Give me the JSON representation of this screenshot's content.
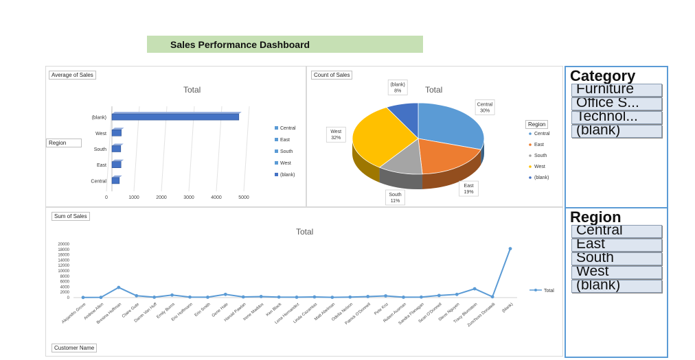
{
  "dashboard": {
    "title": "Sales Performance Dashboard"
  },
  "bar_panel": {
    "field_label": "Average of Sales",
    "axis_field": "Region"
  },
  "pie_panel": {
    "field_label": "Count of Sales",
    "legend_title": "Region"
  },
  "line_panel": {
    "field_label": "Sum of Sales",
    "axis_field": "Customer Name"
  },
  "slicers": {
    "category": {
      "title": "Category",
      "items": [
        "Furniture",
        "Office S...",
        "Technol...",
        "(blank)"
      ]
    },
    "region": {
      "title": "Region",
      "items": [
        "Central",
        "East",
        "South",
        "West",
        "(blank)"
      ]
    }
  },
  "colors": {
    "title_bar": "#c6e0b4",
    "slicer_border": "#5b9bd5",
    "bar": "#4472c4",
    "central": "#5b9bd5",
    "east": "#ed7d31",
    "south": "#a5a5a5",
    "west": "#ffc000",
    "blank": "#4472c4",
    "line": "#5b9bd5"
  },
  "chart_data": [
    {
      "type": "bar",
      "orientation": "horizontal",
      "title": "Total",
      "categories": [
        "Central",
        "East",
        "South",
        "West",
        "(blank)"
      ],
      "values": [
        270,
        330,
        320,
        340,
        4620
      ],
      "xlim": [
        0,
        5000
      ],
      "xticks": [
        "0",
        "1000",
        "2000",
        "3000",
        "4000",
        "5000"
      ],
      "legend": [
        "Central",
        "East",
        "South",
        "West",
        "(blank)"
      ],
      "legend_position": "right"
    },
    {
      "type": "pie",
      "title": "Total",
      "series": [
        {
          "name": "Central",
          "label": "Central",
          "pct_label": "30%",
          "value": 30
        },
        {
          "name": "East",
          "label": "East",
          "pct_label": "19%",
          "value": 19
        },
        {
          "name": "South",
          "label": "South",
          "pct_label": "11%",
          "value": 11
        },
        {
          "name": "West",
          "label": "West",
          "pct_label": "32%",
          "value": 32
        },
        {
          "name": "(blank)",
          "label": "(blank)",
          "pct_label": "8%",
          "value": 8
        }
      ],
      "legend_position": "right"
    },
    {
      "type": "line",
      "title": "Total",
      "x": [
        "Alejandro Grove",
        "Andrew Allen",
        "Brosina Hoffman",
        "Claire Gute",
        "Darrin Van Huff",
        "Emily Burns",
        "Eric Hoffmann",
        "Erin Smith",
        "Gene Hale",
        "Harold Pawlan",
        "Irene Maddox",
        "Ken Black",
        "Lena Hernandez",
        "Linda Cazamias",
        "Matt Abelman",
        "Odella Nelson",
        "Patrick O'Donnell",
        "Pete Kriz",
        "Ruben Ausman",
        "Sandra Flanagan",
        "Sean O'Donnell",
        "Steve Nguyen",
        "Tracy Blumstein",
        "Zuschuss Donatelli",
        "(blank)"
      ],
      "series": [
        {
          "name": "Total",
          "values": [
            50,
            80,
            3800,
            700,
            150,
            950,
            200,
            150,
            1200,
            250,
            400,
            200,
            150,
            250,
            100,
            200,
            400,
            650,
            150,
            200,
            800,
            1200,
            3300,
            300,
            18300
          ]
        }
      ],
      "ylim": [
        0,
        20000
      ],
      "yticks": [
        "0",
        "2000",
        "4000",
        "6000",
        "8000",
        "10000",
        "12000",
        "14000",
        "16000",
        "18000",
        "20000"
      ],
      "legend_position": "right"
    }
  ]
}
